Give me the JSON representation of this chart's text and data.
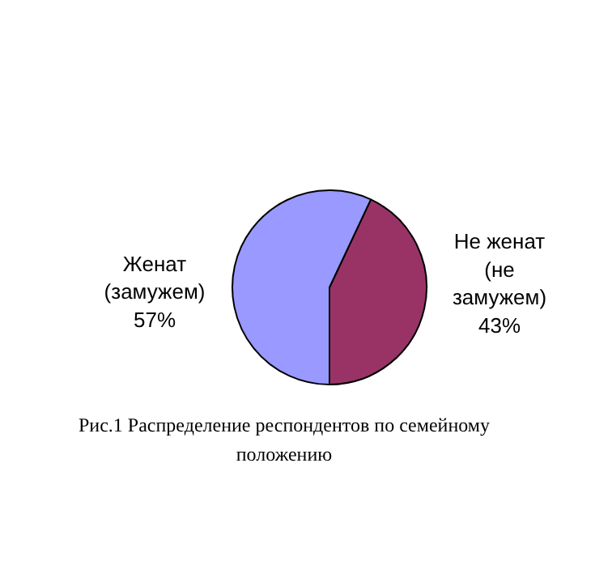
{
  "chart_data": {
    "type": "pie",
    "categories": [
      "Не женат (не замужем)",
      "Женат (замужем)"
    ],
    "values": [
      43,
      57
    ],
    "colors": [
      "#993366",
      "#9999ff"
    ],
    "value_labels": [
      "43%",
      "57%"
    ],
    "annotations": [
      "Рис.1 Распределение респондентов по семейному положению"
    ]
  }
}
